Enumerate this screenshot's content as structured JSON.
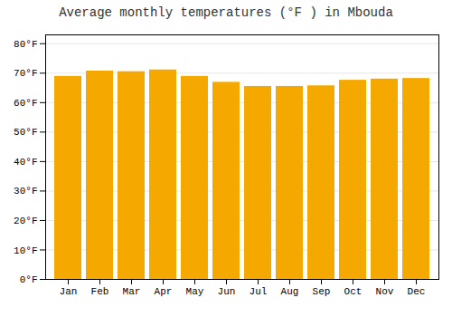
{
  "chart_data": {
    "type": "bar",
    "title": "Average monthly temperatures (°F ) in Mbouda",
    "categories": [
      "Jan",
      "Feb",
      "Mar",
      "Apr",
      "May",
      "Jun",
      "Jul",
      "Aug",
      "Sep",
      "Oct",
      "Nov",
      "Dec"
    ],
    "values": [
      68.9,
      70.7,
      70.5,
      71.1,
      68.9,
      66.9,
      65.5,
      65.5,
      65.7,
      67.6,
      68.0,
      68.2
    ],
    "color": "#F5A800",
    "ylim": [
      0,
      83
    ],
    "yticks": [
      {
        "value": 0,
        "label": "0°F"
      },
      {
        "value": 10,
        "label": "10°F"
      },
      {
        "value": 20,
        "label": "20°F"
      },
      {
        "value": 30,
        "label": "30°F"
      },
      {
        "value": 40,
        "label": "40°F"
      },
      {
        "value": 50,
        "label": "50°F"
      },
      {
        "value": 60,
        "label": "60°F"
      },
      {
        "value": 70,
        "label": "70°F"
      },
      {
        "value": 80,
        "label": "80°F"
      }
    ],
    "grid": true
  }
}
